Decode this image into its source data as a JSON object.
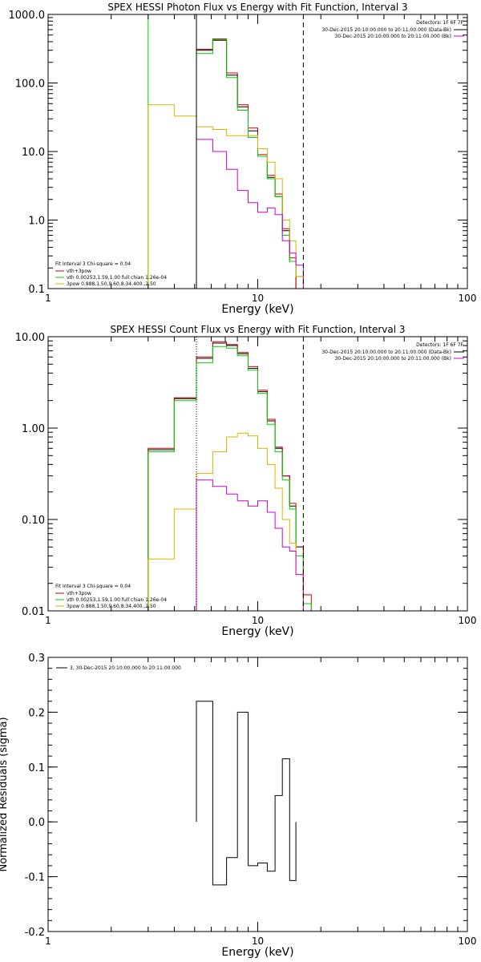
{
  "colors": {
    "axis": "#000000",
    "black": "#000000",
    "red": "#cc0000",
    "green": "#00d000",
    "yellow": "#d8b400",
    "magenta": "#d000d0"
  },
  "chart_data": [
    {
      "type": "line",
      "title": "SPEX HESSI Photon Flux vs Energy with Fit Function, Interval 3",
      "xlabel": "Energy (keV)",
      "ylabel": "",
      "xscale": "log",
      "yscale": "log",
      "xlim": [
        1,
        100
      ],
      "ylim": [
        0.1,
        1000
      ],
      "x_ticks": [
        1,
        10,
        100
      ],
      "x_tick_labels": [
        "1",
        "10",
        "100"
      ],
      "y_ticks": [
        0.1,
        1,
        10,
        100,
        1000
      ],
      "y_tick_labels": [
        "0.1",
        "1.0",
        "10.0",
        "100.0",
        "1000.0"
      ],
      "top_legend": {
        "header": "Detectors: 1F 6F 7F",
        "entries": [
          {
            "text": "30-Dec-2015 20:10:00.000 to 20:11:00.000 (Data-Bk)",
            "color": "black"
          },
          {
            "text": "30-Dec-2015 20:10:00.000 to 20:11:00.000 (Bk)",
            "color": "magenta"
          }
        ]
      },
      "bottom_legend": {
        "header": "Fit Interval 3   Chi-square = 0.04",
        "entries": [
          {
            "text": "vth+3pow",
            "color": "red"
          },
          {
            "text": "vth 0.00253,1.59,1.00  full chian 1.26e-04",
            "color": "green"
          },
          {
            "text": "3pow 0.888,1.50,9.60,8.34,400.,2.50",
            "color": "yellow"
          }
        ]
      },
      "vlines": [
        {
          "x": 5.1,
          "color": "black",
          "style": "solid"
        },
        {
          "x": 16.5,
          "color": "black",
          "style": "dashed"
        }
      ],
      "edges": [
        3.0,
        4.0,
        5.1,
        6.1,
        7.1,
        8.0,
        9.0,
        10.0,
        11.1,
        12.1,
        13.1,
        14.2,
        15.2,
        16.5,
        18.0
      ],
      "series": [
        {
          "color": "black",
          "edges_from": 2,
          "values": [
            300,
            420,
            130,
            45,
            20,
            8.5,
            4.2,
            2.2,
            0.7,
            0.25
          ]
        },
        {
          "color": "red",
          "edges_from": 2,
          "values": [
            310,
            440,
            140,
            48,
            22,
            9.0,
            4.5,
            2.4,
            0.75,
            0.28,
            0.1
          ]
        },
        {
          "color": "green",
          "edges_from": 0,
          "values": [
            1000,
            1000,
            270,
            430,
            120,
            40,
            16,
            8.5,
            4.0,
            2.2,
            0.6,
            0.25,
            0.15
          ]
        },
        {
          "color": "yellow",
          "edges_from": 0,
          "values": [
            48,
            33,
            23,
            21,
            17,
            17,
            17,
            11,
            7,
            4.0,
            1.0,
            0.5,
            0.15
          ]
        },
        {
          "color": "magenta",
          "edges_from": 2,
          "values": [
            15,
            10,
            5.5,
            2.7,
            1.8,
            1.3,
            1.5,
            1.2,
            0.5,
            0.33,
            0.22
          ]
        }
      ]
    },
    {
      "type": "line",
      "title": "SPEX HESSI Count Flux vs Energy with Fit Function, Interval 3",
      "xlabel": "Energy (keV)",
      "ylabel": "",
      "xscale": "log",
      "yscale": "log",
      "xlim": [
        1,
        100
      ],
      "ylim": [
        0.01,
        10
      ],
      "x_ticks": [
        1,
        10,
        100
      ],
      "x_tick_labels": [
        "1",
        "10",
        "100"
      ],
      "y_ticks": [
        0.01,
        0.1,
        1,
        10
      ],
      "y_tick_labels": [
        "0.01",
        "0.10",
        "1.00",
        "10.00"
      ],
      "top_legend": {
        "header": "Detectors: 1F 6F 7F",
        "entries": [
          {
            "text": "30-Dec-2015 20:10:00.000 to 20:11:00.000 (Data-Bk)",
            "color": "black"
          },
          {
            "text": "30-Dec-2015 20:10:00.000 to 20:11:00.000 (Bk)",
            "color": "magenta"
          }
        ]
      },
      "bottom_legend": {
        "header": "Fit Interval 3   Chi-square = 0.04",
        "entries": [
          {
            "text": "vth+3pow",
            "color": "red"
          },
          {
            "text": "vth 0.00253,1.59,1.00  full chian 1.26e-04",
            "color": "green"
          },
          {
            "text": "3pow 0.888,1.50,9.60,8.34,400.,2.50",
            "color": "yellow"
          }
        ]
      },
      "vlines": [
        {
          "x": 5.1,
          "color": "black",
          "style": "dotted"
        },
        {
          "x": 16.5,
          "color": "black",
          "style": "dashed"
        }
      ],
      "edges": [
        3.0,
        4.0,
        5.1,
        6.1,
        7.1,
        8.0,
        9.0,
        10.0,
        11.1,
        12.1,
        13.1,
        14.2,
        15.2,
        16.5,
        18.0,
        19.5
      ],
      "series": [
        {
          "color": "black",
          "edges_from": 0,
          "values": [
            0.58,
            2.1,
            5.8,
            8.5,
            8.0,
            6.5,
            4.5,
            2.5,
            1.2,
            0.6,
            0.3,
            0.14,
            0.05
          ]
        },
        {
          "color": "red",
          "edges_from": 0,
          "values": [
            0.6,
            2.15,
            6.0,
            8.8,
            8.2,
            6.7,
            4.7,
            2.6,
            1.25,
            0.62,
            0.3,
            0.15,
            0.05,
            0.015
          ]
        },
        {
          "color": "green",
          "edges_from": 0,
          "values": [
            0.55,
            2.0,
            5.2,
            7.8,
            7.5,
            6.2,
            4.3,
            2.4,
            1.1,
            0.55,
            0.27,
            0.13,
            0.04,
            0.012
          ]
        },
        {
          "color": "yellow",
          "edges_from": 0,
          "values": [
            0.037,
            0.13,
            0.32,
            0.55,
            0.8,
            0.88,
            0.82,
            0.6,
            0.4,
            0.22,
            0.1,
            0.055,
            0.025
          ]
        },
        {
          "color": "magenta",
          "edges_from": 2,
          "values": [
            0.27,
            0.23,
            0.19,
            0.16,
            0.14,
            0.16,
            0.12,
            0.08,
            0.05,
            0.045,
            0.025
          ]
        }
      ]
    },
    {
      "type": "line",
      "title": "",
      "xlabel": "Energy (keV)",
      "ylabel": "Normalized Residuals (sigma)",
      "xscale": "log",
      "yscale": "linear",
      "xlim": [
        1,
        100
      ],
      "ylim": [
        -0.2,
        0.3
      ],
      "x_ticks": [
        1,
        10,
        100
      ],
      "x_tick_labels": [
        "1",
        "10",
        "100"
      ],
      "y_ticks": [
        -0.2,
        -0.1,
        0.0,
        0.1,
        0.2,
        0.3
      ],
      "y_tick_labels": [
        "-0.2",
        "-0.1",
        "0.0",
        "0.1",
        "0.2",
        "0.3"
      ],
      "legend": {
        "entries": [
          {
            "text": "3, 30-Dec-2015 20:10:00.000 to 20:11:00.000",
            "color": "black"
          }
        ]
      },
      "edges": [
        5.1,
        6.1,
        7.1,
        8.0,
        9.0,
        10.0,
        11.1,
        12.1,
        13.1,
        14.2,
        15.2,
        16.5
      ],
      "series": [
        {
          "color": "black",
          "edges_from": 0,
          "values": [
            0.22,
            -0.115,
            -0.065,
            0.2,
            -0.08,
            -0.075,
            -0.09,
            0.048,
            0.115,
            -0.107
          ]
        }
      ]
    }
  ]
}
